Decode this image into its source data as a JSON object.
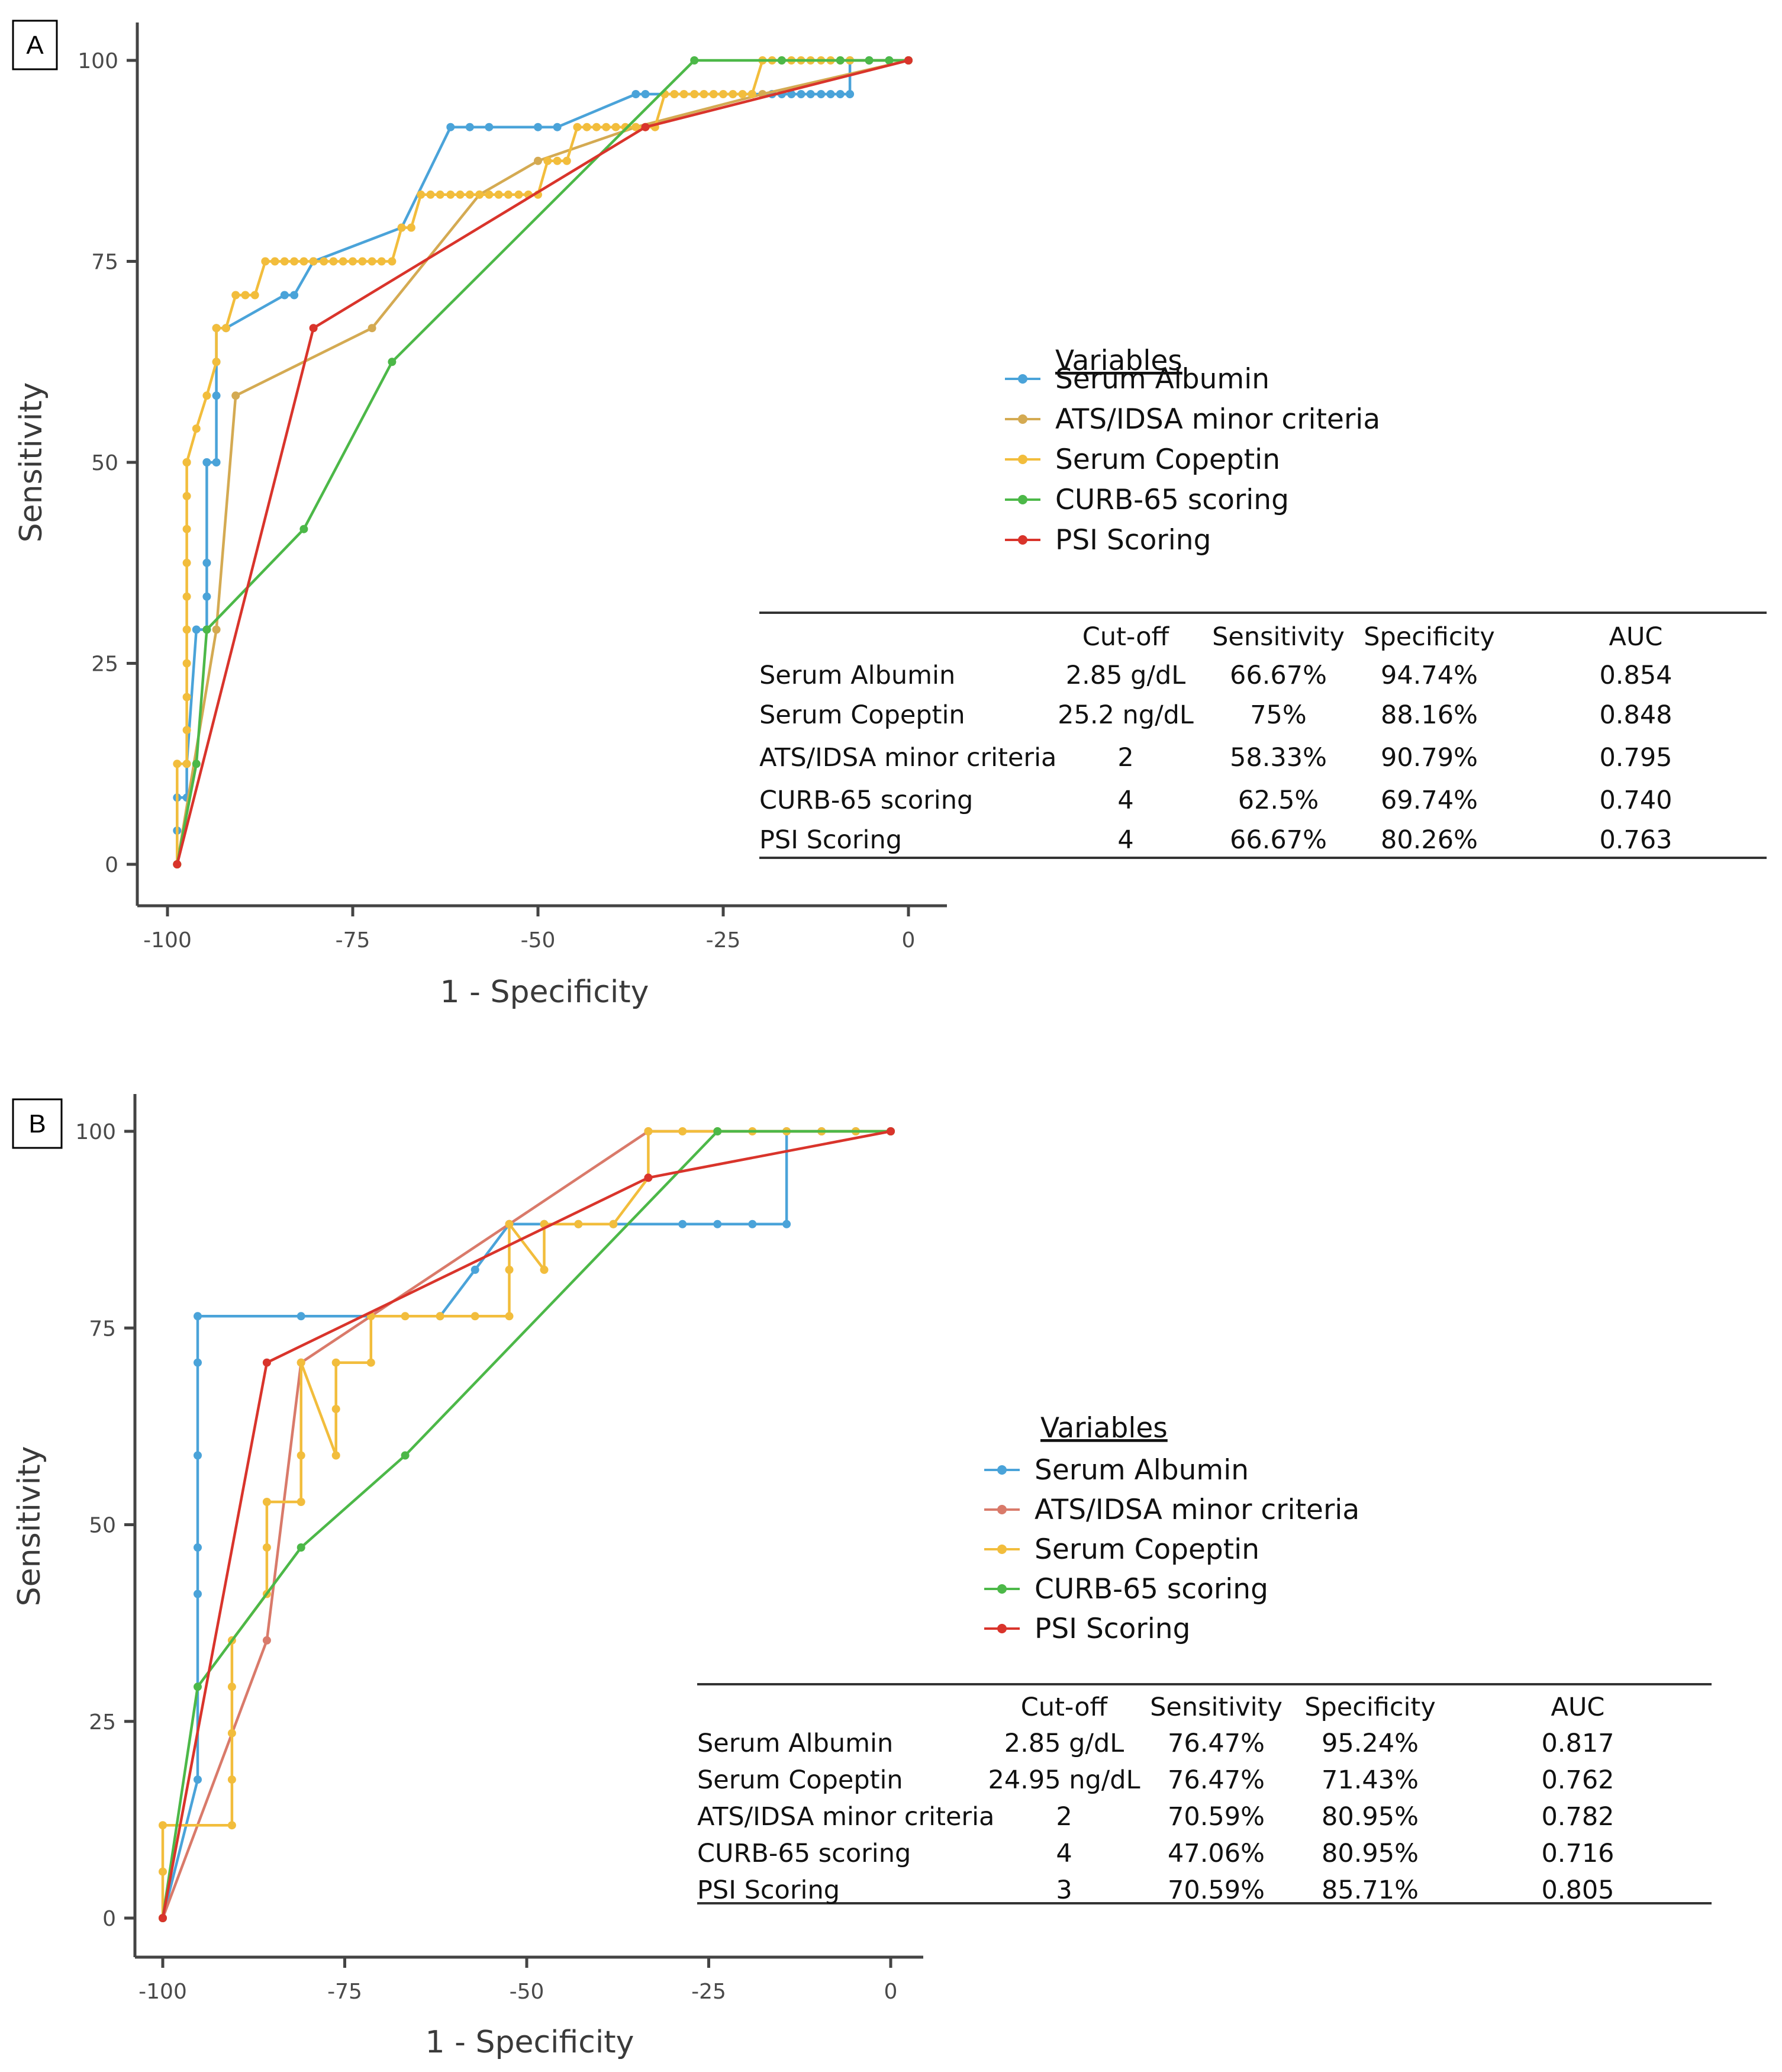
{
  "chart_data": [
    {
      "type": "line",
      "panel_label": "A",
      "xlabel": "1 - Specificity",
      "ylabel": "Sensitivity",
      "xlim": [
        -100,
        0
      ],
      "ylim": [
        0,
        100
      ],
      "x_ticks": [
        "-100",
        "-75",
        "-50",
        "-25",
        "0"
      ],
      "y_ticks": [
        "0",
        "25",
        "50",
        "75",
        "100"
      ],
      "legend_title": "Variables",
      "series": [
        {
          "name": "Serum Albumin",
          "color": "#4aa3d9",
          "x": [
            -98.7,
            -98.7,
            -98.7,
            -97.4,
            -97.4,
            -96.1,
            -94.7,
            -94.7,
            -94.7,
            -94.7,
            -94.7,
            -93.4,
            -93.4,
            -93.4,
            -93.4,
            -92.1,
            -84.2,
            -82.9,
            -80.3,
            -68.4,
            -61.8,
            -59.2,
            -56.6,
            -50.0,
            -47.4,
            -36.8,
            -35.5,
            -21.1,
            -18.4,
            -17.1,
            -15.8,
            -14.5,
            -13.2,
            -11.8,
            -10.5,
            -9.2,
            -7.9,
            -7.9,
            -5.3,
            -2.6,
            0
          ],
          "y": [
            0,
            4.2,
            8.3,
            8.3,
            12.5,
            29.2,
            29.2,
            33.3,
            37.5,
            50.0,
            50.0,
            50.0,
            58.3,
            62.5,
            66.7,
            66.7,
            70.8,
            70.8,
            75.0,
            79.2,
            91.7,
            91.7,
            91.7,
            91.7,
            91.7,
            95.8,
            95.8,
            95.8,
            95.8,
            95.8,
            95.8,
            95.8,
            95.8,
            95.8,
            95.8,
            95.8,
            95.8,
            100,
            100,
            100,
            100
          ]
        },
        {
          "name": "ATS/IDSA minor criteria",
          "color": "#d4aa52",
          "x": [
            -98.7,
            -93.4,
            -90.8,
            -72.4,
            -57.9,
            -50.0,
            -36.8,
            -19.7,
            0
          ],
          "y": [
            0,
            29.2,
            58.3,
            66.7,
            83.3,
            87.5,
            91.7,
            95.8,
            100
          ]
        },
        {
          "name": "Serum Copeptin",
          "color": "#f2bd3c",
          "x": [
            -98.7,
            -98.7,
            -97.4,
            -97.4,
            -97.4,
            -97.4,
            -97.4,
            -97.4,
            -97.4,
            -97.4,
            -97.4,
            -97.4,
            -97.4,
            -97.4,
            -96.1,
            -94.7,
            -93.4,
            -93.4,
            -92.1,
            -90.8,
            -89.5,
            -88.2,
            -86.8,
            -85.5,
            -84.2,
            -82.9,
            -81.6,
            -80.3,
            -78.9,
            -77.6,
            -76.3,
            -75.0,
            -73.7,
            -72.4,
            -71.1,
            -69.7,
            -68.4,
            -67.1,
            -65.8,
            -64.5,
            -63.2,
            -61.8,
            -60.5,
            -59.2,
            -57.9,
            -56.6,
            -55.3,
            -54.0,
            -52.6,
            -51.3,
            -50.0,
            -48.7,
            -47.4,
            -46.1,
            -44.7,
            -43.4,
            -42.1,
            -40.8,
            -39.5,
            -38.2,
            -36.8,
            -35.5,
            -34.2,
            -32.9,
            -31.6,
            -30.3,
            -28.9,
            -27.6,
            -26.3,
            -25.0,
            -23.7,
            -22.4,
            -21.1,
            -19.7,
            -18.4,
            -17.1,
            -15.8,
            -14.5,
            -13.2,
            -11.8,
            -10.5,
            -9.2,
            -7.9,
            0
          ],
          "y": [
            0,
            12.5,
            12.5,
            16.7,
            20.8,
            25.0,
            29.2,
            33.3,
            37.5,
            41.7,
            45.8,
            50.0,
            50.0,
            50.0,
            54.2,
            58.3,
            62.5,
            66.7,
            66.7,
            70.8,
            70.8,
            70.8,
            75.0,
            75.0,
            75.0,
            75.0,
            75.0,
            75.0,
            75.0,
            75.0,
            75.0,
            75.0,
            75.0,
            75.0,
            75.0,
            75.0,
            79.2,
            79.2,
            83.3,
            83.3,
            83.3,
            83.3,
            83.3,
            83.3,
            83.3,
            83.3,
            83.3,
            83.3,
            83.3,
            83.3,
            83.3,
            87.5,
            87.5,
            87.5,
            91.7,
            91.7,
            91.7,
            91.7,
            91.7,
            91.7,
            91.7,
            91.7,
            91.7,
            95.8,
            95.8,
            95.8,
            95.8,
            95.8,
            95.8,
            95.8,
            95.8,
            95.8,
            95.8,
            100,
            100,
            100,
            100,
            100,
            100,
            100,
            100,
            100,
            100,
            100
          ]
        },
        {
          "name": "CURB-65 scoring",
          "color": "#4cb848",
          "x": [
            -98.7,
            -96.1,
            -94.7,
            -81.6,
            -69.7,
            -28.9,
            -17.1,
            -9.2,
            -5.3,
            -2.6,
            0
          ],
          "y": [
            0,
            12.5,
            29.2,
            41.7,
            62.5,
            100,
            100,
            100,
            100,
            100,
            100
          ]
        },
        {
          "name": "PSI Scoring",
          "color": "#d9342b",
          "x": [
            -98.7,
            -80.3,
            -35.5,
            0
          ],
          "y": [
            0,
            66.7,
            91.7,
            100
          ]
        }
      ],
      "table": {
        "headers": [
          "",
          "Cut-off",
          "Sensitivity",
          "Specificity",
          "AUC"
        ],
        "rows": [
          [
            "Serum Albumin",
            "2.85 g/dL",
            "66.67%",
            "94.74%",
            "0.854"
          ],
          [
            "Serum Copeptin",
            "25.2 ng/dL",
            "75%",
            "88.16%",
            "0.848"
          ],
          [
            "ATS/IDSA minor criteria",
            "2",
            "58.33%",
            "90.79%",
            "0.795"
          ],
          [
            "CURB-65 scoring",
            "4",
            "62.5%",
            "69.74%",
            "0.740"
          ],
          [
            "PSI Scoring",
            "4",
            "66.67%",
            "80.26%",
            "0.763"
          ]
        ]
      }
    },
    {
      "type": "line",
      "panel_label": "B",
      "xlabel": "1 - Specificity",
      "ylabel": "Sensitivity",
      "xlim": [
        -100,
        0
      ],
      "ylim": [
        0,
        100
      ],
      "x_ticks": [
        "-100",
        "-75",
        "-50",
        "-25",
        "0"
      ],
      "y_ticks": [
        "0",
        "25",
        "50",
        "75",
        "100"
      ],
      "legend_title": "Variables",
      "series": [
        {
          "name": "Serum Albumin",
          "color": "#4aa3d9",
          "x": [
            -100,
            -95.2,
            -95.2,
            -95.2,
            -95.2,
            -95.2,
            -95.2,
            -81.0,
            -61.9,
            -57.1,
            -52.4,
            -47.6,
            -42.9,
            -38.1,
            -28.6,
            -23.8,
            -19.0,
            -14.3,
            -14.3,
            -9.5,
            -4.8,
            0
          ],
          "y": [
            0,
            17.6,
            41.2,
            47.1,
            58.8,
            70.6,
            76.5,
            76.5,
            76.5,
            82.4,
            88.2,
            88.2,
            88.2,
            88.2,
            88.2,
            88.2,
            88.2,
            88.2,
            100,
            100,
            100,
            100
          ]
        },
        {
          "name": "ATS/IDSA minor criteria",
          "color": "#d97a6a",
          "x": [
            -100,
            -85.7,
            -81.0,
            -52.4,
            -33.3,
            0
          ],
          "y": [
            0,
            35.3,
            70.6,
            88.2,
            100,
            100
          ]
        },
        {
          "name": "Serum Copeptin",
          "color": "#f2bd3c",
          "x": [
            -100,
            -100,
            -100,
            -90.5,
            -90.5,
            -90.5,
            -90.5,
            -90.5,
            -85.7,
            -85.7,
            -85.7,
            -81.0,
            -81.0,
            -81.0,
            -76.2,
            -76.2,
            -76.2,
            -71.4,
            -71.4,
            -66.7,
            -61.9,
            -57.1,
            -52.4,
            -52.4,
            -52.4,
            -47.6,
            -47.6,
            -42.9,
            -38.1,
            -33.3,
            -33.3,
            -28.6,
            -23.8,
            -19.0,
            -14.3,
            -9.5,
            -4.8,
            0
          ],
          "y": [
            0,
            5.9,
            11.8,
            11.8,
            17.6,
            23.5,
            29.4,
            35.3,
            41.2,
            47.1,
            52.9,
            52.9,
            58.8,
            70.6,
            58.8,
            64.7,
            70.6,
            70.6,
            76.5,
            76.5,
            76.5,
            76.5,
            76.5,
            82.4,
            88.2,
            82.4,
            88.2,
            88.2,
            88.2,
            94.1,
            100,
            100,
            100,
            100,
            100,
            100,
            100,
            100
          ]
        },
        {
          "name": "CURB-65 scoring",
          "color": "#4cb848",
          "x": [
            -100,
            -95.2,
            -81.0,
            -66.7,
            -23.8,
            0
          ],
          "y": [
            0,
            29.4,
            47.1,
            58.8,
            100,
            100
          ]
        },
        {
          "name": "PSI Scoring",
          "color": "#d9342b",
          "x": [
            -100,
            -85.7,
            -33.3,
            0
          ],
          "y": [
            0,
            70.6,
            94.1,
            100
          ]
        }
      ],
      "table": {
        "headers": [
          "",
          "Cut-off",
          "Sensitivity",
          "Specificity",
          "AUC"
        ],
        "rows": [
          [
            "Serum Albumin",
            "2.85 g/dL",
            "76.47%",
            "95.24%",
            "0.817"
          ],
          [
            "Serum Copeptin",
            "24.95 ng/dL",
            "76.47%",
            "71.43%",
            "0.762"
          ],
          [
            "ATS/IDSA minor criteria",
            "2",
            "70.59%",
            "80.95%",
            "0.782"
          ],
          [
            "CURB-65 scoring",
            "4",
            "47.06%",
            "80.95%",
            "0.716"
          ],
          [
            "PSI Scoring",
            "3",
            "70.59%",
            "85.71%",
            "0.805"
          ]
        ]
      }
    }
  ]
}
